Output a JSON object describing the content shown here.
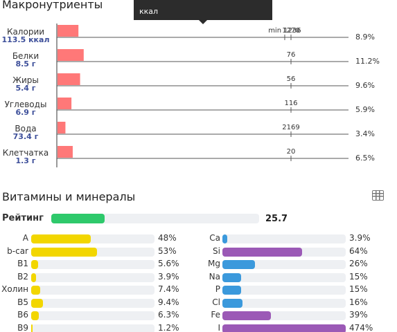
{
  "macros": {
    "title": "Макронутриенты",
    "tooltip_text": "ккал"
  },
  "vitamins": {
    "title": "Витамины и минералы",
    "rating_label": "Рейтинг",
    "rating_value": "25.7",
    "rating_fraction": 0.257,
    "table_icon": "table-icon"
  },
  "colors": {
    "macro_bar": "#ff7878",
    "vitamin_bar": "#f2d600",
    "blue_mineral_bar": "#3b99dc",
    "purple_mineral_bar": "#9b59b6",
    "rating_bar": "#2ec96b",
    "track": "#eef0f3"
  },
  "chart_data": {
    "type": "bar",
    "orientation": "horizontal",
    "categories": [
      "Калории",
      "Белки",
      "Жиры",
      "Углеводы",
      "Вода",
      "Клетчатка"
    ],
    "amounts": [
      "113.5 ккал",
      "8.5 г",
      "5.4 г",
      "6.9 г",
      "73.4 г",
      "1.3 г"
    ],
    "values": [
      113.5,
      8.5,
      5.4,
      6.9,
      73.4,
      1.3
    ],
    "norms": [
      1270,
      76,
      56,
      116,
      2169,
      20
    ],
    "norm_labels": [
      "1270",
      "76",
      "56",
      "116",
      "2169",
      "20"
    ],
    "percent_labels": [
      "8.9%",
      "11.2%",
      "9.6%",
      "5.9%",
      "3.4%",
      "6.5%"
    ],
    "percents": [
      8.9,
      11.2,
      9.6,
      5.9,
      3.4,
      6.5
    ],
    "min_marker": {
      "label": "min 1236",
      "value": 1236
    }
  },
  "vitamin_rows": [
    {
      "name": "A",
      "pct": "48%",
      "value": 48
    },
    {
      "name": "b-car",
      "pct": "53%",
      "value": 53
    },
    {
      "name": "B1",
      "pct": "5.6%",
      "value": 5.6
    },
    {
      "name": "B2",
      "pct": "3.9%",
      "value": 3.9
    },
    {
      "name": "Холин",
      "pct": "7.4%",
      "value": 7.4
    },
    {
      "name": "B5",
      "pct": "9.4%",
      "value": 9.4
    },
    {
      "name": "B6",
      "pct": "6.3%",
      "value": 6.3
    },
    {
      "name": "B9",
      "pct": "1.2%",
      "value": 1.2
    }
  ],
  "mineral_rows": [
    {
      "name": "Ca",
      "pct": "3.9%",
      "value": 3.9,
      "color": "#3b99dc"
    },
    {
      "name": "Si",
      "pct": "64%",
      "value": 64,
      "color": "#9b59b6"
    },
    {
      "name": "Mg",
      "pct": "26%",
      "value": 26,
      "color": "#3b99dc"
    },
    {
      "name": "Na",
      "pct": "15%",
      "value": 15,
      "color": "#3b99dc"
    },
    {
      "name": "P",
      "pct": "15%",
      "value": 15,
      "color": "#3b99dc"
    },
    {
      "name": "Cl",
      "pct": "16%",
      "value": 16,
      "color": "#3b99dc"
    },
    {
      "name": "Fe",
      "pct": "39%",
      "value": 39,
      "color": "#9b59b6"
    },
    {
      "name": "I",
      "pct": "474%",
      "value": 474,
      "color": "#9b59b6"
    }
  ]
}
